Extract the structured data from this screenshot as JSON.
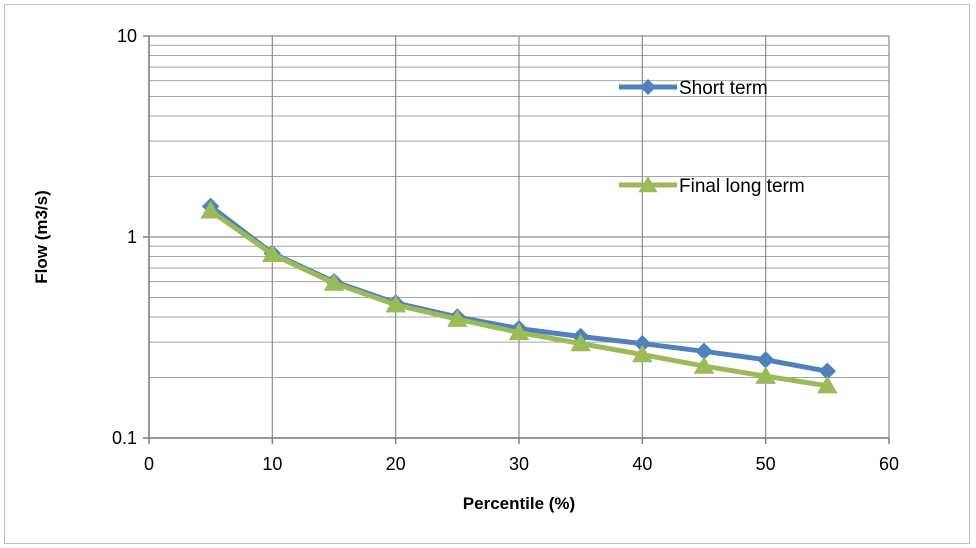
{
  "chart_data": {
    "type": "line",
    "title": "",
    "xlabel": "Percentile (%)",
    "ylabel": "Flow (m3/s)",
    "x": [
      5,
      10,
      15,
      20,
      25,
      30,
      35,
      40,
      45,
      50,
      55
    ],
    "xlim": [
      0,
      60
    ],
    "ylim": [
      0.1,
      10
    ],
    "y_scale": "log",
    "x_ticks": [
      "0",
      "10",
      "20",
      "30",
      "40",
      "50",
      "60"
    ],
    "y_ticks": [
      "0.1",
      "1",
      "10"
    ],
    "grid": true,
    "legend_position": "right",
    "series": [
      {
        "name": "Short term",
        "marker": "diamond",
        "color": "#4f81bd",
        "values": [
          1.42,
          0.83,
          0.6,
          0.47,
          0.4,
          0.35,
          0.32,
          0.295,
          0.27,
          0.245,
          0.215
        ]
      },
      {
        "name": "Final long term",
        "marker": "triangle",
        "color": "#9bbb59",
        "values": [
          1.35,
          0.82,
          0.59,
          0.46,
          0.39,
          0.335,
          0.295,
          0.26,
          0.228,
          0.203,
          0.182
        ]
      }
    ]
  }
}
